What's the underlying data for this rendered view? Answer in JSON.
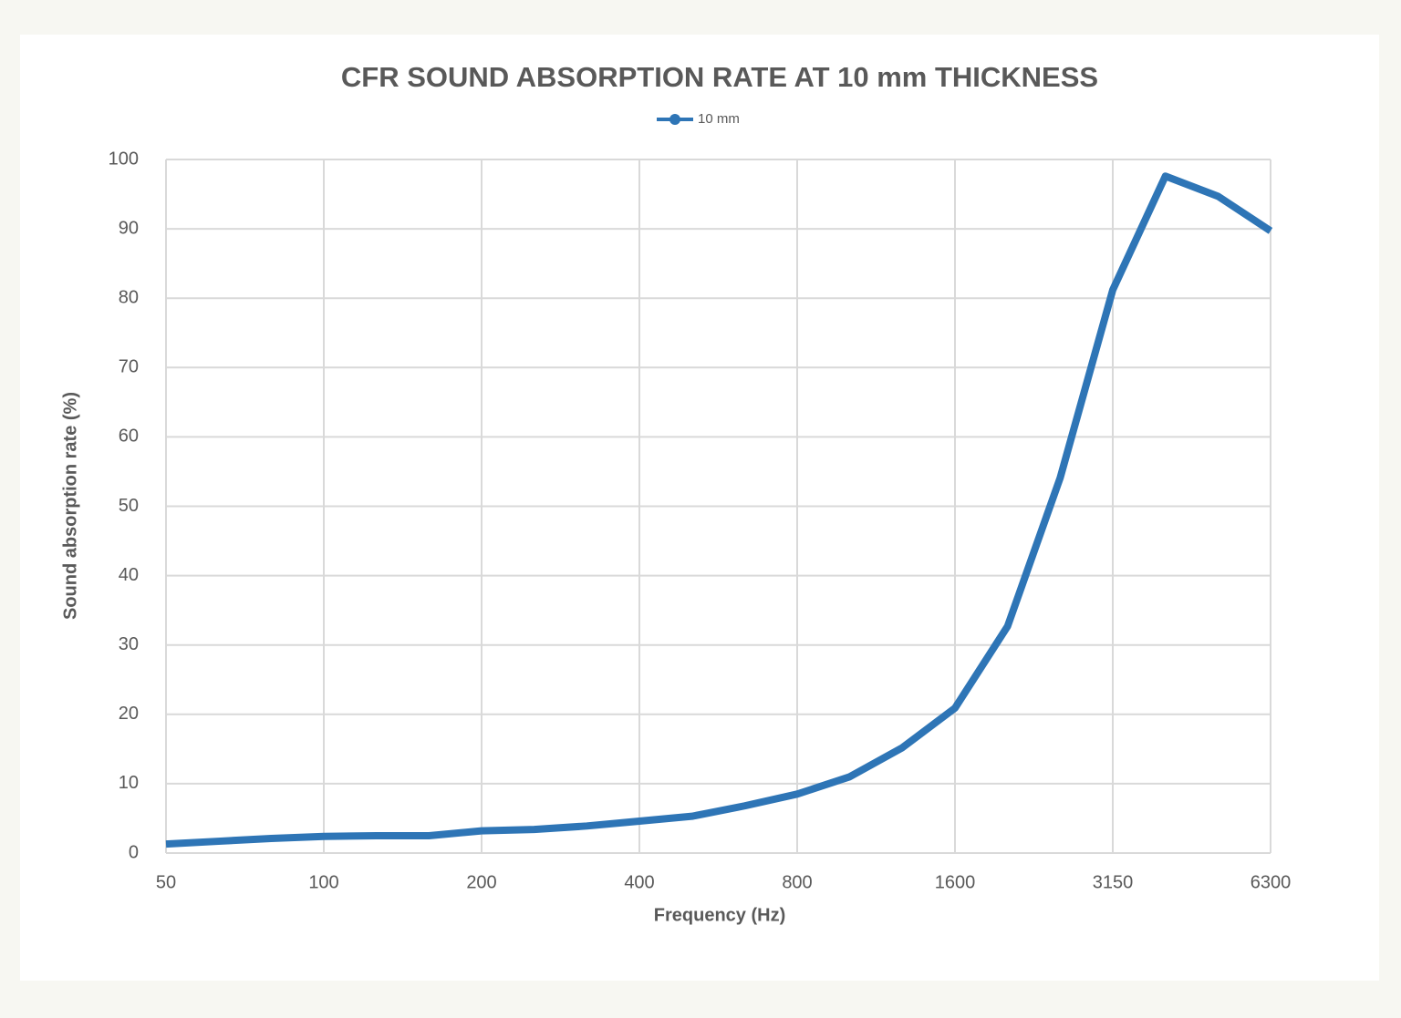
{
  "chart_data": {
    "type": "line",
    "title": "CFR SOUND ABSORPTION RATE AT 10 mm THICKNESS",
    "x_label": "Frequency (Hz)",
    "y_label": "Sound absorption rate (%)",
    "categories": [
      "50",
      null,
      null,
      "100",
      null,
      null,
      "200",
      null,
      null,
      "400",
      null,
      null,
      "800",
      null,
      null,
      "1600",
      null,
      null,
      "3150",
      null,
      null,
      "6300"
    ],
    "series": [
      {
        "name": "10 mm",
        "color": "#2e75b6",
        "values": [
          1.3,
          1.7,
          2.1,
          2.4,
          2.5,
          2.5,
          3.2,
          3.4,
          3.9,
          4.6,
          5.3,
          6.8,
          8.5,
          11.0,
          15.2,
          20.9,
          32.7,
          54.1,
          81.2,
          97.6,
          94.7,
          89.7
        ]
      }
    ],
    "ylim": [
      0,
      100
    ],
    "yticks": [
      0,
      10,
      20,
      30,
      40,
      50,
      60,
      70,
      80,
      90,
      100
    ],
    "grid": true,
    "legend": "top"
  }
}
